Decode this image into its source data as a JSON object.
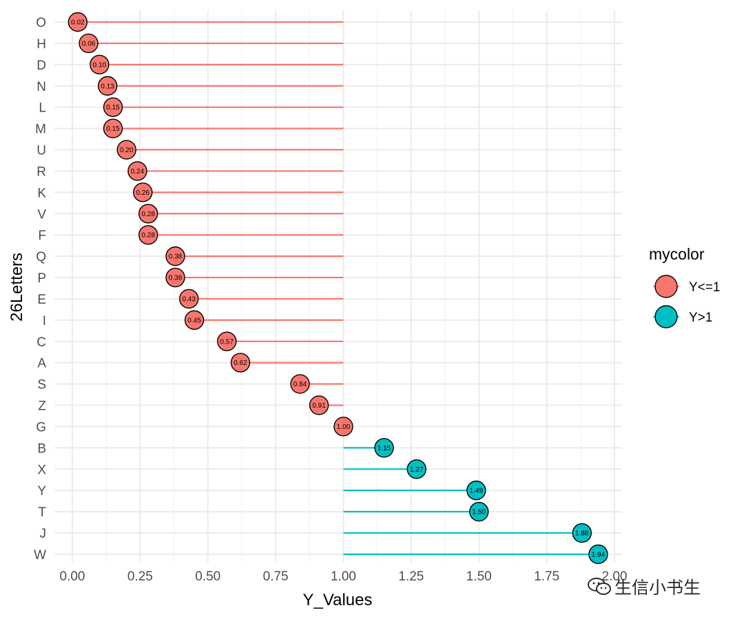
{
  "chart_data": {
    "type": "lollipop",
    "orientation": "horizontal",
    "baseline": 1.0,
    "xlabel": "Y_Values",
    "ylabel": "26Letters",
    "xlim": [
      0,
      2.0
    ],
    "x_ticks": [
      "0.00",
      "0.25",
      "0.50",
      "0.75",
      "1.00",
      "1.25",
      "1.50",
      "1.75",
      "2.00"
    ],
    "grid": true,
    "legend": {
      "title": "mycolor",
      "position": "right",
      "items": [
        {
          "label": "Y<=1",
          "color": "#F8766D"
        },
        {
          "label": "Y>1",
          "color": "#00BFC4"
        }
      ]
    },
    "points": [
      {
        "category": "O",
        "value": 0.02,
        "label": "0.02",
        "group": "Y<=1"
      },
      {
        "category": "H",
        "value": 0.06,
        "label": "0.06",
        "group": "Y<=1"
      },
      {
        "category": "D",
        "value": 0.1,
        "label": "0.10",
        "group": "Y<=1"
      },
      {
        "category": "N",
        "value": 0.13,
        "label": "0.13",
        "group": "Y<=1"
      },
      {
        "category": "L",
        "value": 0.15,
        "label": "0.15",
        "group": "Y<=1"
      },
      {
        "category": "M",
        "value": 0.15,
        "label": "0.15",
        "group": "Y<=1"
      },
      {
        "category": "U",
        "value": 0.2,
        "label": "0.20",
        "group": "Y<=1"
      },
      {
        "category": "R",
        "value": 0.24,
        "label": "0.24",
        "group": "Y<=1"
      },
      {
        "category": "K",
        "value": 0.26,
        "label": "0.26",
        "group": "Y<=1"
      },
      {
        "category": "V",
        "value": 0.28,
        "label": "0.28",
        "group": "Y<=1"
      },
      {
        "category": "F",
        "value": 0.28,
        "label": "0.28",
        "group": "Y<=1"
      },
      {
        "category": "Q",
        "value": 0.38,
        "label": "0.38",
        "group": "Y<=1"
      },
      {
        "category": "P",
        "value": 0.38,
        "label": "0.38",
        "group": "Y<=1"
      },
      {
        "category": "E",
        "value": 0.43,
        "label": "0.43",
        "group": "Y<=1"
      },
      {
        "category": "I",
        "value": 0.45,
        "label": "0.45",
        "group": "Y<=1"
      },
      {
        "category": "C",
        "value": 0.57,
        "label": "0.57",
        "group": "Y<=1"
      },
      {
        "category": "A",
        "value": 0.62,
        "label": "0.62",
        "group": "Y<=1"
      },
      {
        "category": "S",
        "value": 0.84,
        "label": "0.84",
        "group": "Y<=1"
      },
      {
        "category": "Z",
        "value": 0.91,
        "label": "0.91",
        "group": "Y<=1"
      },
      {
        "category": "G",
        "value": 1.0,
        "label": "1.00",
        "group": "Y<=1"
      },
      {
        "category": "B",
        "value": 1.15,
        "label": "1.15",
        "group": "Y>1"
      },
      {
        "category": "X",
        "value": 1.27,
        "label": "1.27",
        "group": "Y>1"
      },
      {
        "category": "Y",
        "value": 1.49,
        "label": "1.49",
        "group": "Y>1"
      },
      {
        "category": "T",
        "value": 1.5,
        "label": "1.50",
        "group": "Y>1"
      },
      {
        "category": "J",
        "value": 1.88,
        "label": "1.88",
        "group": "Y>1"
      },
      {
        "category": "W",
        "value": 1.94,
        "label": "1.94",
        "group": "Y>1"
      }
    ]
  },
  "watermark": {
    "text": "生信小书生",
    "icon": "wechat-icon"
  }
}
